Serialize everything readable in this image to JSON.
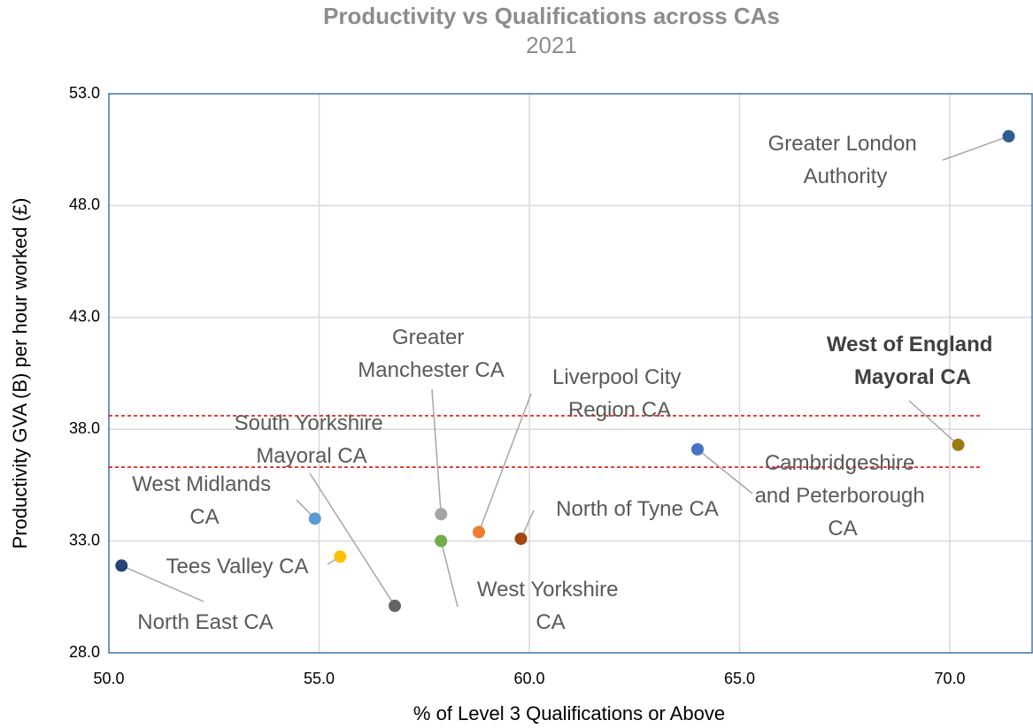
{
  "chart_data": {
    "type": "scatter",
    "title": "Productivity vs Qualifications across CAs",
    "subtitle": "2021",
    "x_label": "% of Level 3 Qualifications or Above",
    "y_label": "Productivity GVA (B) per hour worked (£)",
    "xlim": [
      50,
      72
    ],
    "ylim": [
      28,
      53
    ],
    "xticks": [
      {
        "value": 50,
        "label": "50.0"
      },
      {
        "value": 55,
        "label": "55.0"
      },
      {
        "value": 60,
        "label": "60.0"
      },
      {
        "value": 65,
        "label": "65.0"
      },
      {
        "value": 70,
        "label": "70.0"
      }
    ],
    "yticks": [
      {
        "value": 28,
        "label": "28.0"
      },
      {
        "value": 33,
        "label": "33.0"
      },
      {
        "value": 38,
        "label": "38.0"
      },
      {
        "value": 43,
        "label": "43.0"
      },
      {
        "value": 48,
        "label": "48.0"
      },
      {
        "value": 53,
        "label": "53.0"
      }
    ],
    "grid": true,
    "reference_lines": {
      "color": "#e00000",
      "values": [
        38.6,
        36.3
      ]
    },
    "points": [
      {
        "name": "Greater London Authority",
        "x": 71.4,
        "y": 51.1,
        "color": "#2a5f8f"
      },
      {
        "name": "West of England Mayoral CA",
        "x": 70.2,
        "y": 37.3,
        "color": "#9c7a10",
        "highlight": true
      },
      {
        "name": "Cambridgeshire and Peterborough CA",
        "x": 64.0,
        "y": 37.1,
        "color": "#4472c4"
      },
      {
        "name": "West Midlands CA",
        "x": 54.9,
        "y": 34.0,
        "color": "#5b9bd5"
      },
      {
        "name": "Greater Manchester CA",
        "x": 57.9,
        "y": 34.2,
        "color": "#a5a5a5"
      },
      {
        "name": "Liverpool City Region CA",
        "x": 58.8,
        "y": 33.4,
        "color": "#ed7d31"
      },
      {
        "name": "North of Tyne CA",
        "x": 59.8,
        "y": 33.1,
        "color": "#9e480e"
      },
      {
        "name": "West Yorkshire CA",
        "x": 57.9,
        "y": 33.0,
        "color": "#70ad47"
      },
      {
        "name": "Tees Valley CA",
        "x": 55.5,
        "y": 32.3,
        "color": "#ffc000"
      },
      {
        "name": "North East CA",
        "x": 50.3,
        "y": 31.9,
        "color": "#264478"
      },
      {
        "name": "South Yorkshire Mayoral CA",
        "x": 56.8,
        "y": 30.1,
        "color": "#636363"
      }
    ]
  }
}
